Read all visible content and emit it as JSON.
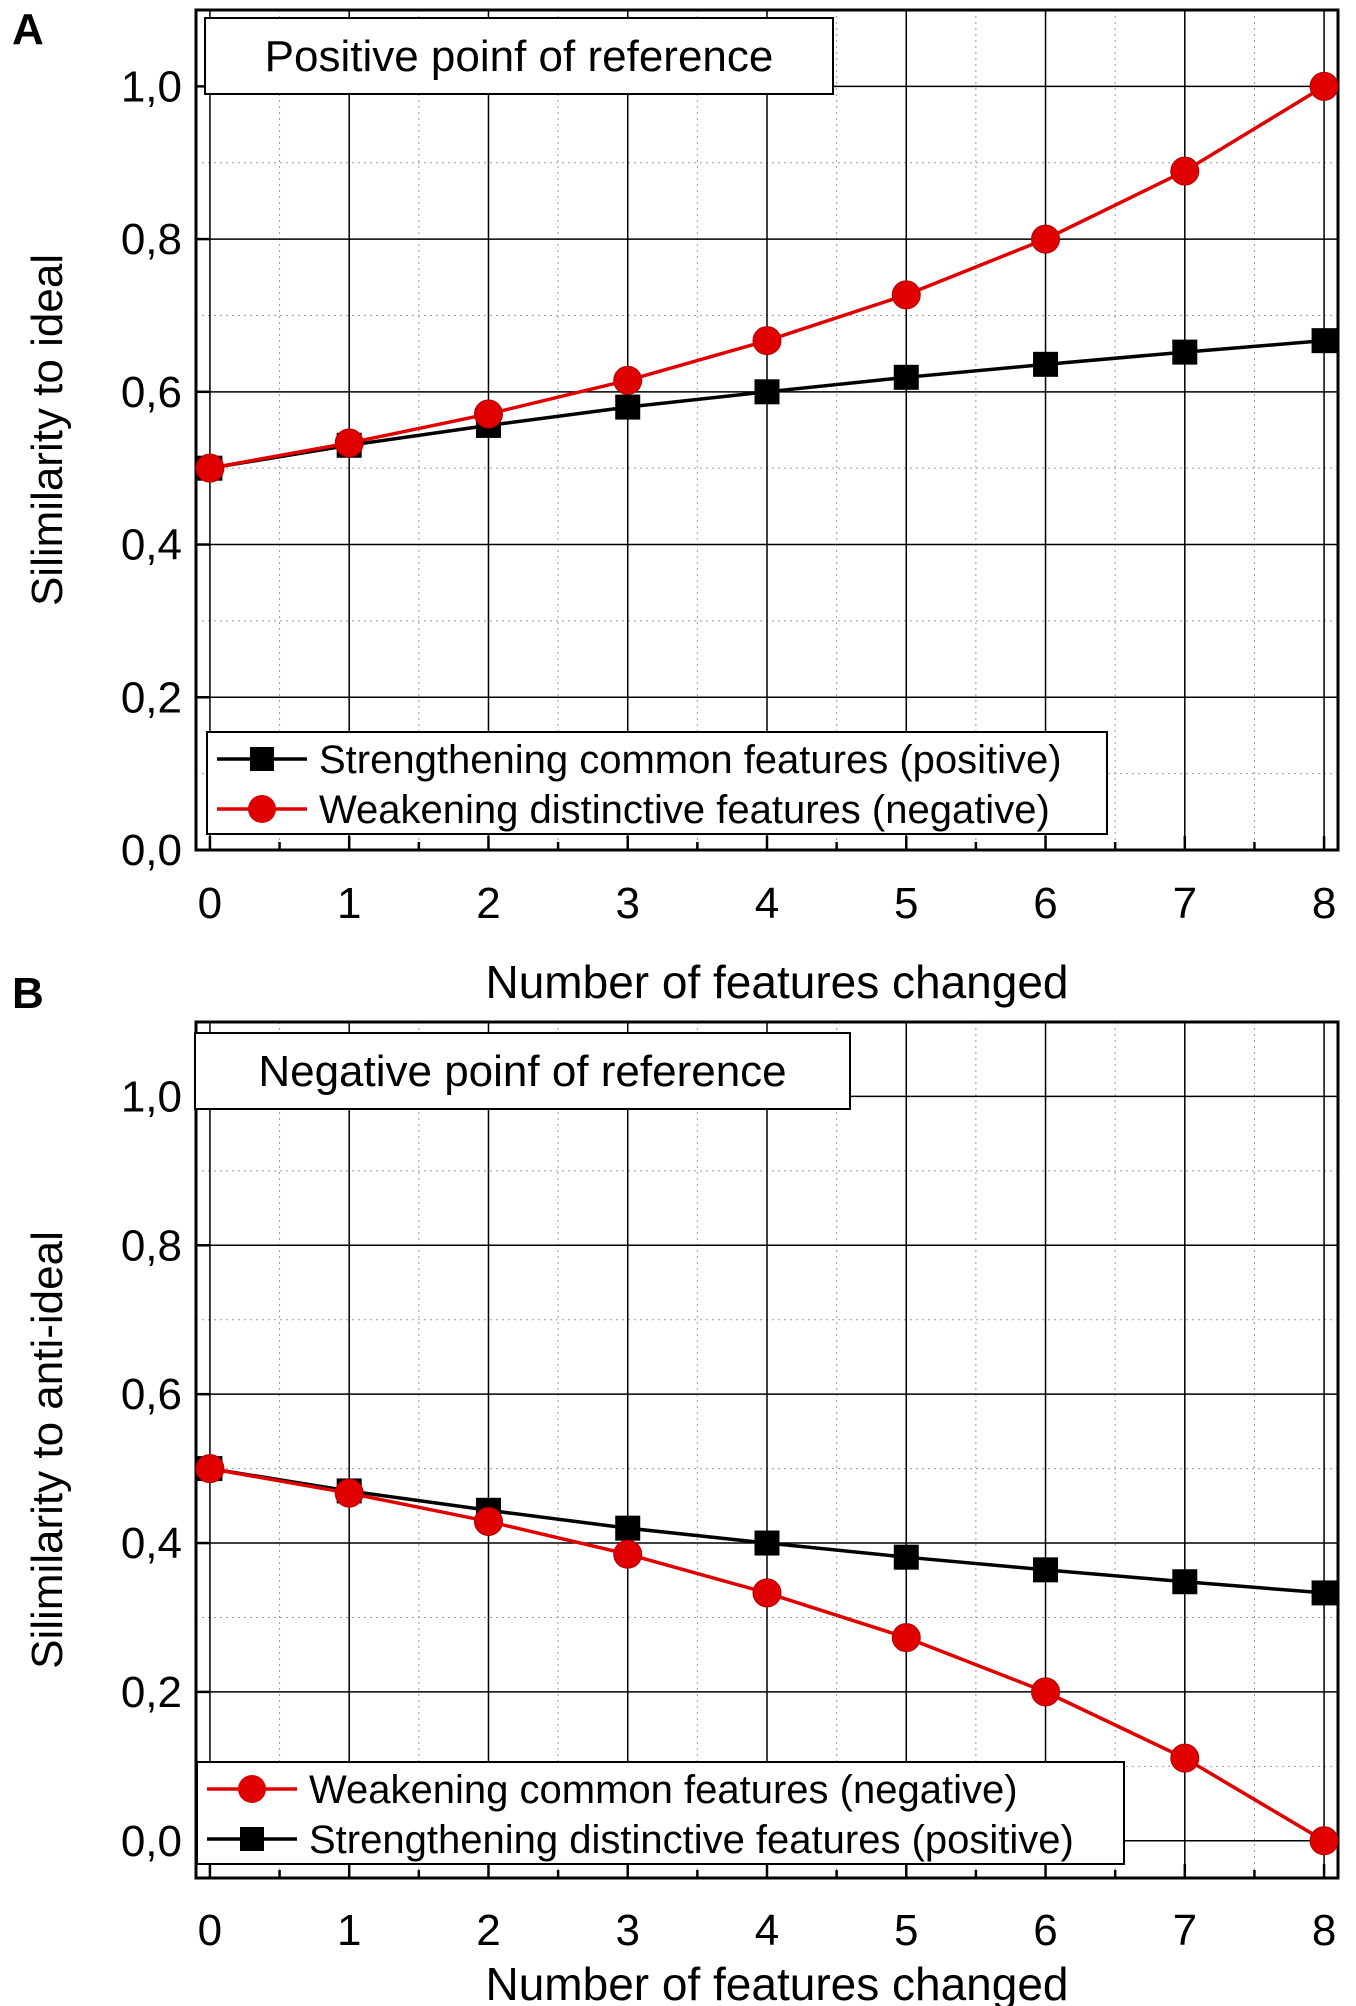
{
  "chart_data": [
    {
      "panel": "A",
      "type": "line",
      "annotation": "Positive poinf of reference",
      "xlabel": "Number of features changed",
      "ylabel": "Silimilarity to ideal",
      "x": [
        0,
        1,
        2,
        3,
        4,
        5,
        6,
        7,
        8
      ],
      "xlim": [
        -0.1,
        8.1
      ],
      "ylim": [
        0.0,
        1.1
      ],
      "x_ticks": [
        "0",
        "1",
        "2",
        "3",
        "4",
        "5",
        "6",
        "7",
        "8"
      ],
      "y_ticks": [
        {
          "value": 0.0,
          "label": "0,0"
        },
        {
          "value": 0.2,
          "label": "0,2"
        },
        {
          "value": 0.4,
          "label": "0,4"
        },
        {
          "value": 0.6,
          "label": "0,6"
        },
        {
          "value": 0.8,
          "label": "0,8"
        },
        {
          "value": 1.0,
          "label": "1,0"
        }
      ],
      "grid": true,
      "legend_position": "bottom-left",
      "series": [
        {
          "name": "Strengthening common features (positive)",
          "color": "#000000",
          "marker": "square",
          "values": [
            0.5,
            0.53,
            0.556,
            0.58,
            0.6,
            0.619,
            0.636,
            0.652,
            0.667
          ]
        },
        {
          "name": "Weakening distinctive features (negative)",
          "color": "#e00000",
          "marker": "circle",
          "values": [
            0.5,
            0.533,
            0.571,
            0.615,
            0.667,
            0.727,
            0.8,
            0.889,
            1.0
          ]
        }
      ]
    },
    {
      "panel": "B",
      "type": "line",
      "annotation": "Negative poinf of reference",
      "xlabel": "Number of features changed",
      "ylabel": "Silimilarity to anti-ideal",
      "x": [
        0,
        1,
        2,
        3,
        4,
        5,
        6,
        7,
        8
      ],
      "xlim": [
        -0.1,
        8.1
      ],
      "ylim": [
        -0.05,
        1.1
      ],
      "x_ticks": [
        "0",
        "1",
        "2",
        "3",
        "4",
        "5",
        "6",
        "7",
        "8"
      ],
      "y_ticks": [
        {
          "value": 0.0,
          "label": "0,0"
        },
        {
          "value": 0.2,
          "label": "0,2"
        },
        {
          "value": 0.4,
          "label": "0,4"
        },
        {
          "value": 0.6,
          "label": "0,6"
        },
        {
          "value": 0.8,
          "label": "0,8"
        },
        {
          "value": 1.0,
          "label": "1,0"
        }
      ],
      "grid": true,
      "legend_position": "bottom-left",
      "series": [
        {
          "name": "Weakening common features (negative)",
          "color": "#e00000",
          "marker": "circle",
          "values": [
            0.5,
            0.467,
            0.429,
            0.385,
            0.333,
            0.273,
            0.2,
            0.111,
            0.0
          ]
        },
        {
          "name": "Strengthening distinctive features (positive)",
          "color": "#000000",
          "marker": "square",
          "values": [
            0.5,
            0.47,
            0.444,
            0.42,
            0.4,
            0.381,
            0.364,
            0.348,
            0.333
          ]
        }
      ]
    }
  ]
}
